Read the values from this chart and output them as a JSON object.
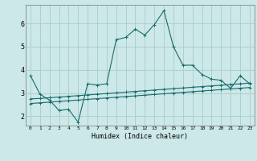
{
  "xlabel": "Humidex (Indice chaleur)",
  "background_color": "#cce8e8",
  "grid_color": "#aacccc",
  "line_color": "#1a6b6b",
  "x_ticks": [
    0,
    1,
    2,
    3,
    4,
    5,
    6,
    7,
    8,
    9,
    10,
    11,
    12,
    13,
    14,
    15,
    16,
    17,
    18,
    19,
    20,
    21,
    22,
    23
  ],
  "y_ticks": [
    2,
    3,
    4,
    5,
    6
  ],
  "ylim": [
    1.6,
    6.8
  ],
  "xlim": [
    -0.5,
    23.5
  ],
  "series1_x": [
    0,
    1,
    2,
    3,
    4,
    5,
    6,
    7,
    8,
    9,
    10,
    11,
    12,
    13,
    14,
    15,
    16,
    17,
    18,
    19,
    20,
    21,
    22,
    23
  ],
  "series1_y": [
    3.75,
    2.95,
    2.7,
    2.25,
    2.3,
    1.75,
    3.4,
    3.35,
    3.4,
    5.3,
    5.4,
    5.75,
    5.5,
    5.95,
    6.55,
    5.0,
    4.2,
    4.2,
    3.8,
    3.6,
    3.55,
    3.2,
    3.75,
    3.4
  ],
  "series2_x": [
    0,
    1,
    2,
    3,
    4,
    5,
    6,
    7,
    8,
    9,
    10,
    11,
    12,
    13,
    14,
    15,
    16,
    17,
    18,
    19,
    20,
    21,
    22,
    23
  ],
  "series2_y": [
    2.75,
    2.77,
    2.8,
    2.83,
    2.86,
    2.89,
    2.92,
    2.95,
    2.98,
    3.01,
    3.04,
    3.07,
    3.1,
    3.13,
    3.16,
    3.19,
    3.22,
    3.25,
    3.28,
    3.31,
    3.34,
    3.37,
    3.4,
    3.43
  ],
  "series3_x": [
    0,
    1,
    2,
    3,
    4,
    5,
    6,
    7,
    8,
    9,
    10,
    11,
    12,
    13,
    14,
    15,
    16,
    17,
    18,
    19,
    20,
    21,
    22,
    23
  ],
  "series3_y": [
    2.55,
    2.58,
    2.61,
    2.64,
    2.67,
    2.7,
    2.73,
    2.76,
    2.79,
    2.82,
    2.85,
    2.88,
    2.91,
    2.94,
    2.97,
    3.0,
    3.03,
    3.06,
    3.09,
    3.12,
    3.15,
    3.18,
    3.21,
    3.24
  ]
}
